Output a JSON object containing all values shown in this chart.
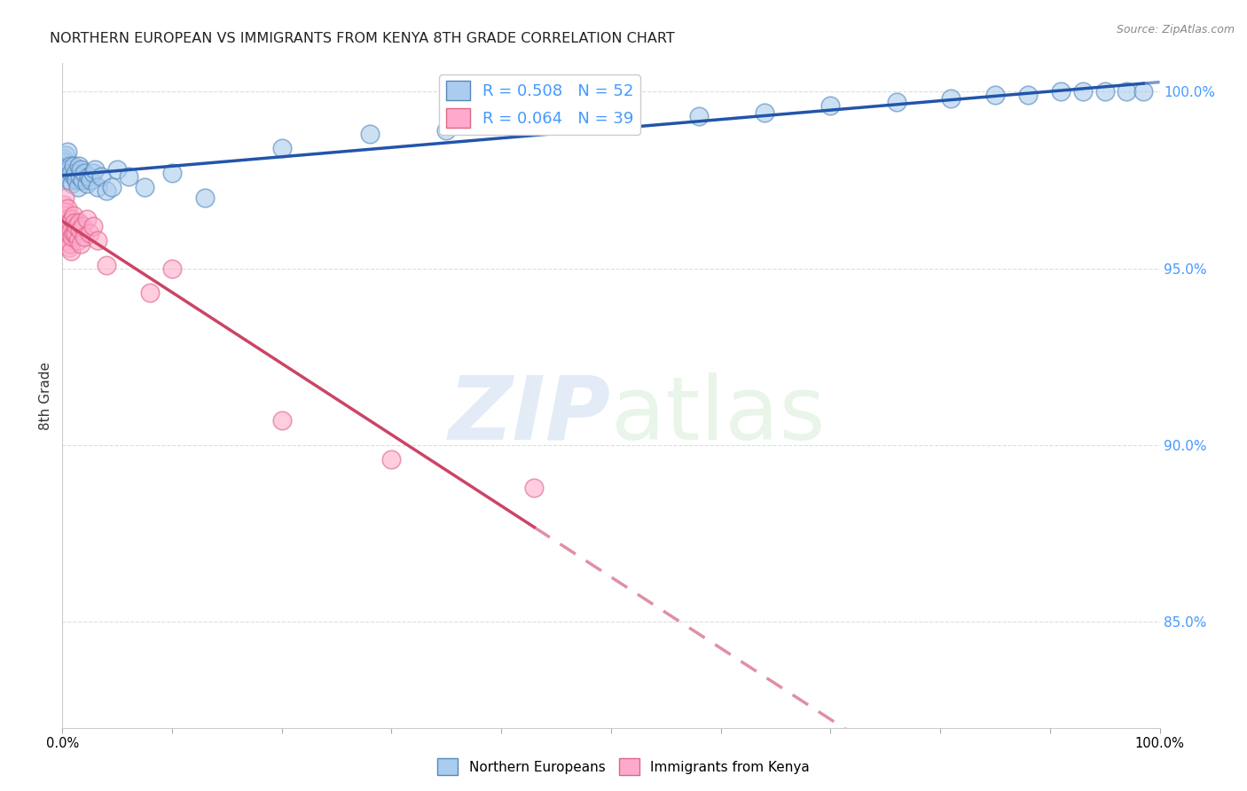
{
  "title": "NORTHERN EUROPEAN VS IMMIGRANTS FROM KENYA 8TH GRADE CORRELATION CHART",
  "source": "Source: ZipAtlas.com",
  "ylabel": "8th Grade",
  "ylabel_right_labels": [
    "100.0%",
    "95.0%",
    "90.0%",
    "85.0%"
  ],
  "ylabel_right_positions": [
    1.0,
    0.95,
    0.9,
    0.85
  ],
  "blue_R": 0.508,
  "blue_N": 52,
  "pink_R": 0.064,
  "pink_N": 39,
  "blue_color": "#AACCEE",
  "pink_color": "#FFAACC",
  "blue_edge_color": "#5588BB",
  "pink_edge_color": "#DD6688",
  "blue_line_color": "#2255AA",
  "pink_line_color": "#CC4466",
  "blue_scatter_x": [
    0.001,
    0.002,
    0.003,
    0.003,
    0.004,
    0.005,
    0.006,
    0.006,
    0.007,
    0.008,
    0.009,
    0.01,
    0.011,
    0.012,
    0.013,
    0.014,
    0.015,
    0.016,
    0.017,
    0.018,
    0.02,
    0.022,
    0.024,
    0.026,
    0.028,
    0.03,
    0.032,
    0.035,
    0.04,
    0.045,
    0.05,
    0.06,
    0.075,
    0.1,
    0.13,
    0.2,
    0.28,
    0.35,
    0.42,
    0.5,
    0.58,
    0.64,
    0.7,
    0.76,
    0.81,
    0.85,
    0.88,
    0.91,
    0.93,
    0.95,
    0.97,
    0.985
  ],
  "blue_scatter_y": [
    0.981,
    0.98,
    0.979,
    0.982,
    0.977,
    0.983,
    0.978,
    0.975,
    0.979,
    0.977,
    0.974,
    0.979,
    0.976,
    0.977,
    0.975,
    0.973,
    0.979,
    0.976,
    0.978,
    0.975,
    0.977,
    0.974,
    0.976,
    0.975,
    0.977,
    0.978,
    0.973,
    0.976,
    0.972,
    0.973,
    0.978,
    0.976,
    0.973,
    0.977,
    0.97,
    0.984,
    0.988,
    0.989,
    0.991,
    0.993,
    0.993,
    0.994,
    0.996,
    0.997,
    0.998,
    0.999,
    0.999,
    1.0,
    1.0,
    1.0,
    1.0,
    1.0
  ],
  "pink_scatter_x": [
    0.001,
    0.001,
    0.002,
    0.002,
    0.003,
    0.003,
    0.004,
    0.004,
    0.005,
    0.005,
    0.006,
    0.006,
    0.007,
    0.007,
    0.008,
    0.008,
    0.009,
    0.009,
    0.01,
    0.01,
    0.011,
    0.012,
    0.013,
    0.014,
    0.015,
    0.016,
    0.017,
    0.018,
    0.02,
    0.022,
    0.025,
    0.028,
    0.032,
    0.04,
    0.08,
    0.1,
    0.2,
    0.3,
    0.43
  ],
  "pink_scatter_y": [
    0.968,
    0.965,
    0.97,
    0.963,
    0.966,
    0.96,
    0.964,
    0.958,
    0.967,
    0.962,
    0.96,
    0.956,
    0.963,
    0.957,
    0.961,
    0.955,
    0.964,
    0.959,
    0.965,
    0.96,
    0.963,
    0.96,
    0.962,
    0.958,
    0.963,
    0.961,
    0.957,
    0.962,
    0.959,
    0.964,
    0.96,
    0.962,
    0.958,
    0.951,
    0.943,
    0.95,
    0.907,
    0.896,
    0.888
  ],
  "legend_label_blue": "Northern Europeans",
  "legend_label_pink": "Immigrants from Kenya",
  "watermark_zip": "ZIP",
  "watermark_atlas": "atlas",
  "xlim": [
    0.0,
    1.0
  ],
  "ylim": [
    0.82,
    1.008
  ],
  "background_color": "#FFFFFF",
  "grid_color": "#DDDDDD",
  "right_tick_color": "#4499FF"
}
